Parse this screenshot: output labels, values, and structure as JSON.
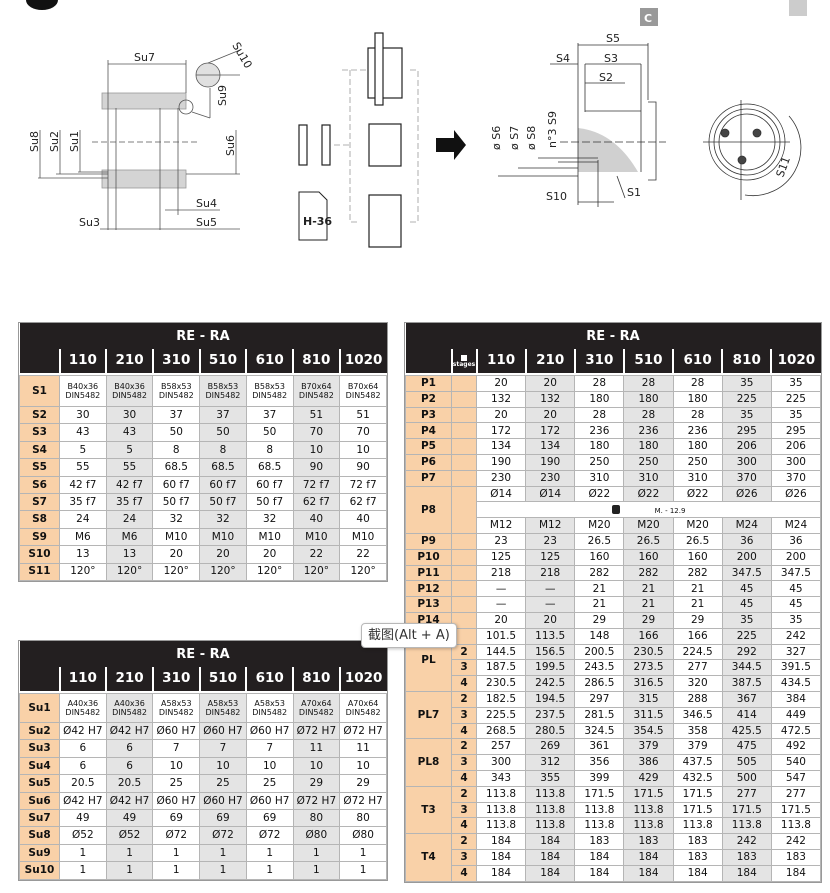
{
  "diagram": {
    "left_labels": {
      "su7": "Su7",
      "su10": "Su10",
      "su9": "Su9",
      "su8": "Su8",
      "su2": "Su2",
      "su1": "Su1",
      "su6": "Su6",
      "su4": "Su4",
      "su3": "Su3",
      "su5": "Su5"
    },
    "doc_label": "H-36",
    "right_labels": {
      "c": "C",
      "s5": "S5",
      "s4": "S4",
      "s3": "S3",
      "s2": "S2",
      "s6": "ø S6",
      "s7": "ø S7",
      "s8": "ø S8",
      "s9": "n°3 S9",
      "s10": "S10",
      "s1": "S1",
      "s11": "S11"
    }
  },
  "table_s": {
    "title": "RE - RA",
    "columns": [
      "110",
      "210",
      "310",
      "510",
      "610",
      "810",
      "1020"
    ],
    "rows": [
      {
        "label": "S1",
        "values": [
          "B40x36\nDIN5482",
          "B40x36\nDIN5482",
          "B58x53\nDIN5482",
          "B58x53\nDIN5482",
          "B58x53\nDIN5482",
          "B70x64\nDIN5482",
          "B70x64\nDIN5482"
        ]
      },
      {
        "label": "S2",
        "values": [
          "30",
          "30",
          "37",
          "37",
          "37",
          "51",
          "51"
        ]
      },
      {
        "label": "S3",
        "values": [
          "43",
          "43",
          "50",
          "50",
          "50",
          "70",
          "70"
        ]
      },
      {
        "label": "S4",
        "values": [
          "5",
          "5",
          "8",
          "8",
          "8",
          "10",
          "10"
        ]
      },
      {
        "label": "S5",
        "values": [
          "55",
          "55",
          "68.5",
          "68.5",
          "68.5",
          "90",
          "90"
        ]
      },
      {
        "label": "S6",
        "values": [
          "42 f7",
          "42 f7",
          "60 f7",
          "60 f7",
          "60 f7",
          "72 f7",
          "72 f7"
        ]
      },
      {
        "label": "S7",
        "values": [
          "35 f7",
          "35 f7",
          "50 f7",
          "50 f7",
          "50 f7",
          "62 f7",
          "62 f7"
        ]
      },
      {
        "label": "S8",
        "values": [
          "24",
          "24",
          "32",
          "32",
          "32",
          "40",
          "40"
        ]
      },
      {
        "label": "S9",
        "values": [
          "M6",
          "M6",
          "M10",
          "M10",
          "M10",
          "M10",
          "M10"
        ]
      },
      {
        "label": "S10",
        "values": [
          "13",
          "13",
          "20",
          "20",
          "20",
          "22",
          "22"
        ]
      },
      {
        "label": "S11",
        "values": [
          "120°",
          "120°",
          "120°",
          "120°",
          "120°",
          "120°",
          "120°"
        ]
      }
    ]
  },
  "table_su": {
    "title": "RE - RA",
    "columns": [
      "110",
      "210",
      "310",
      "510",
      "610",
      "810",
      "1020"
    ],
    "rows": [
      {
        "label": "Su1",
        "values": [
          "A40x36\nDIN5482",
          "A40x36\nDIN5482",
          "A58x53\nDIN5482",
          "A58x53\nDIN5482",
          "A58x53\nDIN5482",
          "A70x64\nDIN5482",
          "A70x64\nDIN5482"
        ]
      },
      {
        "label": "Su2",
        "values": [
          "Ø42 H7",
          "Ø42 H7",
          "Ø60 H7",
          "Ø60 H7",
          "Ø60 H7",
          "Ø72 H7",
          "Ø72 H7"
        ]
      },
      {
        "label": "Su3",
        "values": [
          "6",
          "6",
          "7",
          "7",
          "7",
          "11",
          "11"
        ]
      },
      {
        "label": "Su4",
        "values": [
          "6",
          "6",
          "10",
          "10",
          "10",
          "10",
          "10"
        ]
      },
      {
        "label": "Su5",
        "values": [
          "20.5",
          "20.5",
          "25",
          "25",
          "25",
          "29",
          "29"
        ]
      },
      {
        "label": "Su6",
        "values": [
          "Ø42 H7",
          "Ø42 H7",
          "Ø60 H7",
          "Ø60 H7",
          "Ø60 H7",
          "Ø72 H7",
          "Ø72 H7"
        ]
      },
      {
        "label": "Su7",
        "values": [
          "49",
          "49",
          "69",
          "69",
          "69",
          "80",
          "80"
        ]
      },
      {
        "label": "Su8",
        "values": [
          "Ø52",
          "Ø52",
          "Ø72",
          "Ø72",
          "Ø72",
          "Ø80",
          "Ø80"
        ]
      },
      {
        "label": "Su9",
        "values": [
          "1",
          "1",
          "1",
          "1",
          "1",
          "1",
          "1"
        ]
      },
      {
        "label": "Su10",
        "values": [
          "1",
          "1",
          "1",
          "1",
          "1",
          "1",
          "1"
        ]
      }
    ]
  },
  "table_p": {
    "title": "RE - RA",
    "stage_header": "stages",
    "columns": [
      "110",
      "210",
      "310",
      "510",
      "610",
      "810",
      "1020"
    ],
    "rows": [
      {
        "label": "P1",
        "sub": [
          {
            "stage": "",
            "values": [
              "20",
              "20",
              "28",
              "28",
              "28",
              "35",
              "35"
            ]
          }
        ]
      },
      {
        "label": "P2",
        "sub": [
          {
            "stage": "",
            "values": [
              "132",
              "132",
              "180",
              "180",
              "180",
              "225",
              "225"
            ]
          }
        ]
      },
      {
        "label": "P3",
        "sub": [
          {
            "stage": "",
            "values": [
              "20",
              "20",
              "28",
              "28",
              "28",
              "35",
              "35"
            ]
          }
        ]
      },
      {
        "label": "P4",
        "sub": [
          {
            "stage": "",
            "values": [
              "172",
              "172",
              "236",
              "236",
              "236",
              "295",
              "295"
            ]
          }
        ]
      },
      {
        "label": "P5",
        "sub": [
          {
            "stage": "",
            "values": [
              "134",
              "134",
              "180",
              "180",
              "180",
              "206",
              "206"
            ]
          }
        ]
      },
      {
        "label": "P6",
        "sub": [
          {
            "stage": "",
            "values": [
              "190",
              "190",
              "250",
              "250",
              "250",
              "300",
              "300"
            ]
          }
        ]
      },
      {
        "label": "P7",
        "sub": [
          {
            "stage": "",
            "values": [
              "230",
              "230",
              "310",
              "310",
              "310",
              "370",
              "370"
            ]
          }
        ]
      },
      {
        "label": "P8",
        "sub": [
          {
            "stage": "",
            "values": [
              "Ø14",
              "Ø14",
              "Ø22",
              "Ø22",
              "Ø22",
              "Ø26",
              "Ø26"
            ]
          },
          {
            "stage": "",
            "note": "M. - 12.9"
          },
          {
            "stage": "",
            "values": [
              "M12",
              "M12",
              "M20",
              "M20",
              "M20",
              "M24",
              "M24"
            ]
          }
        ]
      },
      {
        "label": "P9",
        "sub": [
          {
            "stage": "",
            "values": [
              "23",
              "23",
              "26.5",
              "26.5",
              "26.5",
              "36",
              "36"
            ]
          }
        ]
      },
      {
        "label": "P10",
        "sub": [
          {
            "stage": "",
            "values": [
              "125",
              "125",
              "160",
              "160",
              "160",
              "200",
              "200"
            ]
          }
        ]
      },
      {
        "label": "P11",
        "sub": [
          {
            "stage": "",
            "values": [
              "218",
              "218",
              "282",
              "282",
              "282",
              "347.5",
              "347.5"
            ]
          }
        ]
      },
      {
        "label": "P12",
        "sub": [
          {
            "stage": "",
            "values": [
              "—",
              "—",
              "21",
              "21",
              "21",
              "45",
              "45"
            ]
          }
        ]
      },
      {
        "label": "P13",
        "sub": [
          {
            "stage": "",
            "values": [
              "—",
              "—",
              "21",
              "21",
              "21",
              "45",
              "45"
            ]
          }
        ]
      },
      {
        "label": "P14",
        "sub": [
          {
            "stage": "",
            "values": [
              "20",
              "20",
              "29",
              "29",
              "29",
              "35",
              "35"
            ]
          }
        ]
      },
      {
        "label": "PL",
        "sub": [
          {
            "stage": "",
            "values": [
              "101.5",
              "113.5",
              "148",
              "166",
              "166",
              "225",
              "242"
            ]
          },
          {
            "stage": "2",
            "values": [
              "144.5",
              "156.5",
              "200.5",
              "230.5",
              "224.5",
              "292",
              "327"
            ]
          },
          {
            "stage": "3",
            "values": [
              "187.5",
              "199.5",
              "243.5",
              "273.5",
              "277",
              "344.5",
              "391.5"
            ]
          },
          {
            "stage": "4",
            "values": [
              "230.5",
              "242.5",
              "286.5",
              "316.5",
              "320",
              "387.5",
              "434.5"
            ]
          }
        ]
      },
      {
        "label": "PL7",
        "sub": [
          {
            "stage": "2",
            "values": [
              "182.5",
              "194.5",
              "297",
              "315",
              "288",
              "367",
              "384"
            ]
          },
          {
            "stage": "3",
            "values": [
              "225.5",
              "237.5",
              "281.5",
              "311.5",
              "346.5",
              "414",
              "449"
            ]
          },
          {
            "stage": "4",
            "values": [
              "268.5",
              "280.5",
              "324.5",
              "354.5",
              "358",
              "425.5",
              "472.5"
            ]
          }
        ]
      },
      {
        "label": "PL8",
        "sub": [
          {
            "stage": "2",
            "values": [
              "257",
              "269",
              "361",
              "379",
              "379",
              "475",
              "492"
            ]
          },
          {
            "stage": "3",
            "values": [
              "300",
              "312",
              "356",
              "386",
              "437.5",
              "505",
              "540"
            ]
          },
          {
            "stage": "4",
            "values": [
              "343",
              "355",
              "399",
              "429",
              "432.5",
              "500",
              "547"
            ]
          }
        ]
      },
      {
        "label": "T3",
        "sub": [
          {
            "stage": "2",
            "values": [
              "113.8",
              "113.8",
              "171.5",
              "171.5",
              "171.5",
              "277",
              "277"
            ]
          },
          {
            "stage": "3",
            "values": [
              "113.8",
              "113.8",
              "113.8",
              "113.8",
              "171.5",
              "171.5",
              "171.5"
            ]
          },
          {
            "stage": "4",
            "values": [
              "113.8",
              "113.8",
              "113.8",
              "113.8",
              "113.8",
              "113.8",
              "113.8"
            ]
          }
        ]
      },
      {
        "label": "T4",
        "sub": [
          {
            "stage": "2",
            "values": [
              "184",
              "184",
              "183",
              "183",
              "183",
              "242",
              "242"
            ]
          },
          {
            "stage": "3",
            "values": [
              "184",
              "184",
              "184",
              "184",
              "183",
              "183",
              "183"
            ]
          },
          {
            "stage": "4",
            "values": [
              "184",
              "184",
              "184",
              "184",
              "184",
              "184",
              "184"
            ]
          }
        ]
      }
    ]
  },
  "tooltip": {
    "text": "截图(Alt + A)"
  },
  "colors": {
    "header": "#231f20",
    "label_cell": "#f9d1a8",
    "alt_column": "#e4e4e4"
  }
}
